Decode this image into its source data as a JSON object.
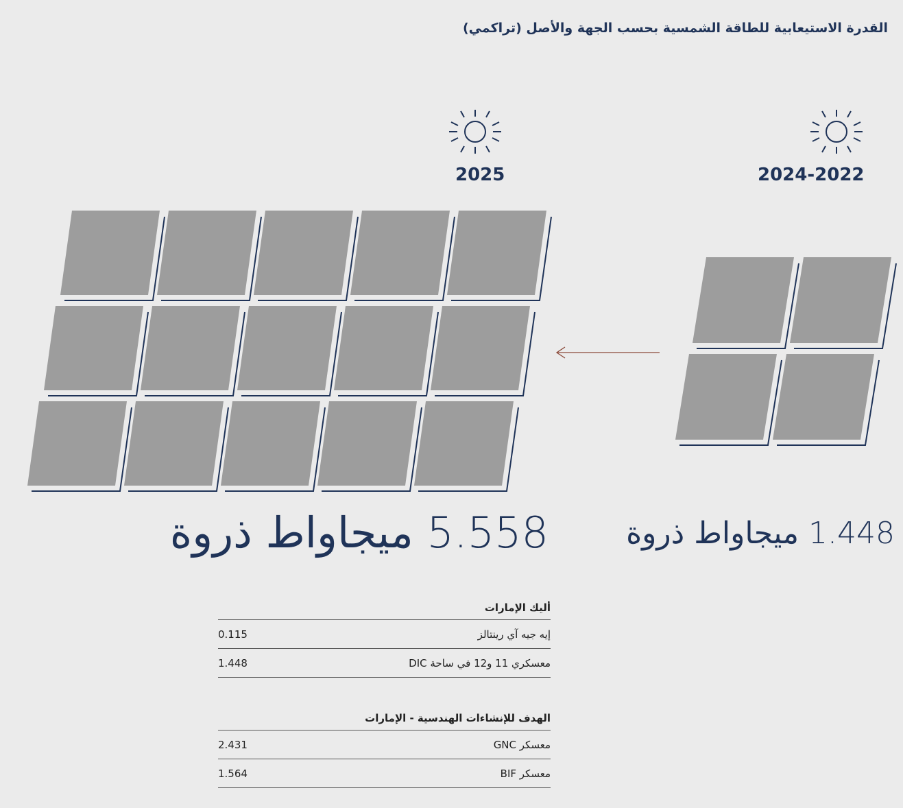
{
  "title": "القدرة الاستيعابية للطاقة الشمسية بحسب الجهة والأصل (تراكمي)",
  "periods": [
    {
      "label": "2025",
      "total": "5.558 ميجاواط ذروة"
    },
    {
      "label": "2024-2022",
      "total": "1.448 ميجاواط ذروة"
    }
  ],
  "table": {
    "groups": [
      {
        "header": "أليك الإمارات",
        "rows": [
          [
            "إيه جيه آي رينتالز",
            "0.115"
          ],
          [
            "معسكري 11 و12 في ساحة DIC",
            "1.448"
          ]
        ]
      },
      {
        "header": "الهدف للإنشاءات الهندسية - الإمارات",
        "rows": [
          [
            "معسكر GNC",
            "2.431"
          ],
          [
            "معسكر BIF",
            "1.564"
          ]
        ]
      }
    ]
  }
}
